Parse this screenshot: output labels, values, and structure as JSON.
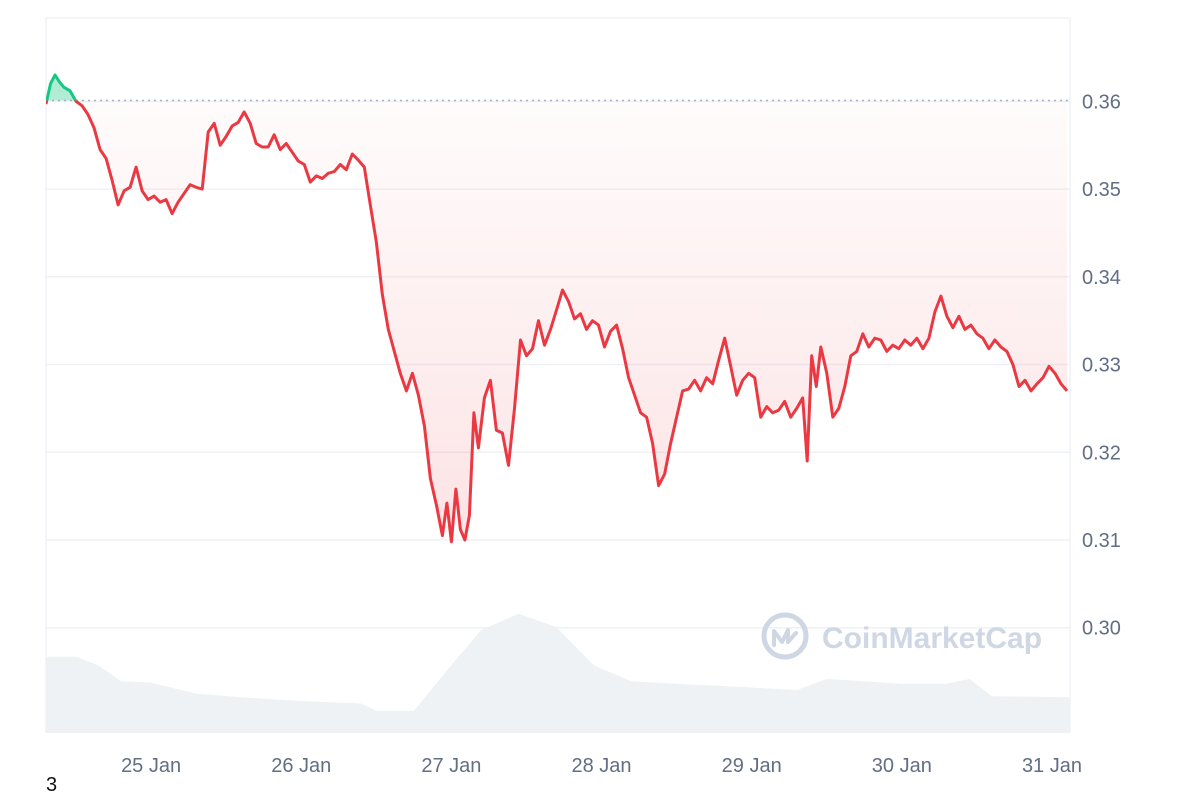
{
  "page": {
    "number": "3"
  },
  "watermark": {
    "text": "CoinMarketCap",
    "icon": "coinmarketcap-logo-icon"
  },
  "colors": {
    "down_line": "#ea3943",
    "up_line": "#16c784",
    "down_fill": "#ea3943",
    "up_fill": "#16c784",
    "grid": "#eff2f5",
    "axis_text": "#616e85",
    "baseline": "#a6b0c3",
    "volume": "#eff2f5",
    "watermark": "#cfd6e4"
  },
  "chart_data": {
    "type": "line",
    "series": [
      {
        "values": [
          [
            24.3,
            0.3597
          ],
          [
            24.33,
            0.362
          ],
          [
            24.36,
            0.363
          ],
          [
            24.39,
            0.3622
          ],
          [
            24.42,
            0.3616
          ],
          [
            24.46,
            0.3612
          ],
          [
            24.5,
            0.36
          ],
          [
            24.54,
            0.3595
          ],
          [
            24.58,
            0.3585
          ],
          [
            24.62,
            0.357
          ],
          [
            24.66,
            0.3545
          ],
          [
            24.7,
            0.3535
          ],
          [
            24.74,
            0.351
          ],
          [
            24.78,
            0.3482
          ],
          [
            24.82,
            0.3498
          ],
          [
            24.86,
            0.3502
          ],
          [
            24.9,
            0.3525
          ],
          [
            24.94,
            0.3498
          ],
          [
            24.98,
            0.3488
          ],
          [
            25.02,
            0.3492
          ],
          [
            25.06,
            0.3485
          ],
          [
            25.1,
            0.3488
          ],
          [
            25.14,
            0.3472
          ],
          [
            25.18,
            0.3485
          ],
          [
            25.22,
            0.3495
          ],
          [
            25.26,
            0.3505
          ],
          [
            25.3,
            0.3502
          ],
          [
            25.34,
            0.35
          ],
          [
            25.38,
            0.3565
          ],
          [
            25.42,
            0.3575
          ],
          [
            25.46,
            0.355
          ],
          [
            25.5,
            0.356
          ],
          [
            25.54,
            0.3572
          ],
          [
            25.58,
            0.3576
          ],
          [
            25.62,
            0.3588
          ],
          [
            25.66,
            0.3575
          ],
          [
            25.7,
            0.3552
          ],
          [
            25.74,
            0.3548
          ],
          [
            25.78,
            0.3548
          ],
          [
            25.82,
            0.3562
          ],
          [
            25.86,
            0.3545
          ],
          [
            25.9,
            0.3552
          ],
          [
            25.94,
            0.3542
          ],
          [
            25.98,
            0.3532
          ],
          [
            26.02,
            0.3528
          ],
          [
            26.06,
            0.3508
          ],
          [
            26.1,
            0.3515
          ],
          [
            26.14,
            0.3512
          ],
          [
            26.18,
            0.3518
          ],
          [
            26.22,
            0.352
          ],
          [
            26.26,
            0.3528
          ],
          [
            26.3,
            0.3522
          ],
          [
            26.34,
            0.354
          ],
          [
            26.38,
            0.3533
          ],
          [
            26.42,
            0.3525
          ],
          [
            26.46,
            0.3482
          ],
          [
            26.5,
            0.344
          ],
          [
            26.54,
            0.338
          ],
          [
            26.58,
            0.334
          ],
          [
            26.62,
            0.3315
          ],
          [
            26.66,
            0.329
          ],
          [
            26.7,
            0.327
          ],
          [
            26.74,
            0.329
          ],
          [
            26.78,
            0.3265
          ],
          [
            26.82,
            0.323
          ],
          [
            26.86,
            0.317
          ],
          [
            26.9,
            0.314
          ],
          [
            26.94,
            0.3105
          ],
          [
            26.97,
            0.3142
          ],
          [
            27.0,
            0.3098
          ],
          [
            27.03,
            0.3158
          ],
          [
            27.06,
            0.3112
          ],
          [
            27.09,
            0.31
          ],
          [
            27.12,
            0.3128
          ],
          [
            27.15,
            0.3245
          ],
          [
            27.18,
            0.3205
          ],
          [
            27.22,
            0.3262
          ],
          [
            27.26,
            0.3282
          ],
          [
            27.3,
            0.3225
          ],
          [
            27.34,
            0.3222
          ],
          [
            27.38,
            0.3185
          ],
          [
            27.42,
            0.325
          ],
          [
            27.46,
            0.3328
          ],
          [
            27.5,
            0.331
          ],
          [
            27.54,
            0.3318
          ],
          [
            27.58,
            0.335
          ],
          [
            27.62,
            0.3322
          ],
          [
            27.66,
            0.334
          ],
          [
            27.7,
            0.3362
          ],
          [
            27.74,
            0.3385
          ],
          [
            27.78,
            0.3372
          ],
          [
            27.82,
            0.3352
          ],
          [
            27.86,
            0.3358
          ],
          [
            27.9,
            0.334
          ],
          [
            27.94,
            0.335
          ],
          [
            27.98,
            0.3345
          ],
          [
            28.02,
            0.332
          ],
          [
            28.06,
            0.3338
          ],
          [
            28.1,
            0.3345
          ],
          [
            28.14,
            0.3318
          ],
          [
            28.18,
            0.3285
          ],
          [
            28.22,
            0.3265
          ],
          [
            28.26,
            0.3245
          ],
          [
            28.3,
            0.324
          ],
          [
            28.34,
            0.321
          ],
          [
            28.38,
            0.3162
          ],
          [
            28.42,
            0.3175
          ],
          [
            28.46,
            0.321
          ],
          [
            28.5,
            0.324
          ],
          [
            28.54,
            0.327
          ],
          [
            28.58,
            0.3272
          ],
          [
            28.62,
            0.3282
          ],
          [
            28.66,
            0.327
          ],
          [
            28.7,
            0.3285
          ],
          [
            28.74,
            0.3278
          ],
          [
            28.78,
            0.3305
          ],
          [
            28.82,
            0.333
          ],
          [
            28.86,
            0.3298
          ],
          [
            28.9,
            0.3265
          ],
          [
            28.94,
            0.3282
          ],
          [
            28.98,
            0.329
          ],
          [
            29.02,
            0.3285
          ],
          [
            29.06,
            0.324
          ],
          [
            29.1,
            0.3252
          ],
          [
            29.14,
            0.3245
          ],
          [
            29.18,
            0.3248
          ],
          [
            29.22,
            0.3258
          ],
          [
            29.26,
            0.324
          ],
          [
            29.3,
            0.325
          ],
          [
            29.34,
            0.3262
          ],
          [
            29.37,
            0.319
          ],
          [
            29.4,
            0.331
          ],
          [
            29.43,
            0.3275
          ],
          [
            29.46,
            0.332
          ],
          [
            29.5,
            0.329
          ],
          [
            29.54,
            0.324
          ],
          [
            29.58,
            0.325
          ],
          [
            29.62,
            0.3275
          ],
          [
            29.66,
            0.331
          ],
          [
            29.7,
            0.3315
          ],
          [
            29.74,
            0.3335
          ],
          [
            29.78,
            0.332
          ],
          [
            29.82,
            0.333
          ],
          [
            29.86,
            0.3328
          ],
          [
            29.9,
            0.3315
          ],
          [
            29.94,
            0.3322
          ],
          [
            29.98,
            0.3318
          ],
          [
            30.02,
            0.3328
          ],
          [
            30.06,
            0.3322
          ],
          [
            30.1,
            0.333
          ],
          [
            30.14,
            0.3318
          ],
          [
            30.18,
            0.333
          ],
          [
            30.22,
            0.336
          ],
          [
            30.26,
            0.3378
          ],
          [
            30.3,
            0.3355
          ],
          [
            30.34,
            0.3342
          ],
          [
            30.38,
            0.3355
          ],
          [
            30.42,
            0.334
          ],
          [
            30.46,
            0.3345
          ],
          [
            30.5,
            0.3335
          ],
          [
            30.54,
            0.333
          ],
          [
            30.58,
            0.3318
          ],
          [
            30.62,
            0.3328
          ],
          [
            30.66,
            0.332
          ],
          [
            30.7,
            0.3315
          ],
          [
            30.74,
            0.33
          ],
          [
            30.78,
            0.3275
          ],
          [
            30.82,
            0.3282
          ],
          [
            30.86,
            0.327
          ],
          [
            30.9,
            0.3278
          ],
          [
            30.94,
            0.3285
          ],
          [
            30.98,
            0.3298
          ],
          [
            31.02,
            0.329
          ],
          [
            31.06,
            0.3278
          ],
          [
            31.1,
            0.327
          ]
        ]
      }
    ],
    "baseline": 0.3601,
    "xticks": [
      {
        "value": 25,
        "label": "25 Jan"
      },
      {
        "value": 26,
        "label": "26 Jan"
      },
      {
        "value": 27,
        "label": "27 Jan"
      },
      {
        "value": 28,
        "label": "28 Jan"
      },
      {
        "value": 29,
        "label": "29 Jan"
      },
      {
        "value": 30,
        "label": "30 Jan"
      },
      {
        "value": 31,
        "label": "31 Jan"
      }
    ],
    "yticks": [
      {
        "value": 0.36,
        "label": "0.36"
      },
      {
        "value": 0.35,
        "label": "0.35"
      },
      {
        "value": 0.34,
        "label": "0.34"
      },
      {
        "value": 0.33,
        "label": "0.33"
      },
      {
        "value": 0.32,
        "label": "0.32"
      },
      {
        "value": 0.31,
        "label": "0.31"
      },
      {
        "value": 0.3,
        "label": "0.30"
      }
    ],
    "xlim": [
      24.3,
      31.12
    ],
    "ylim": [
      0.288,
      0.3695
    ],
    "volume": {
      "values": [
        [
          24.3,
          0.62
        ],
        [
          24.5,
          0.62
        ],
        [
          24.65,
          0.55
        ],
        [
          24.8,
          0.42
        ],
        [
          25.0,
          0.41
        ],
        [
          25.3,
          0.32
        ],
        [
          25.6,
          0.29
        ],
        [
          26.0,
          0.26
        ],
        [
          26.4,
          0.24
        ],
        [
          26.5,
          0.18
        ],
        [
          26.75,
          0.18
        ],
        [
          26.95,
          0.48
        ],
        [
          27.2,
          0.84
        ],
        [
          27.45,
          0.97
        ],
        [
          27.7,
          0.86
        ],
        [
          27.95,
          0.55
        ],
        [
          28.2,
          0.42
        ],
        [
          28.5,
          0.4
        ],
        [
          29.0,
          0.37
        ],
        [
          29.3,
          0.35
        ],
        [
          29.5,
          0.44
        ],
        [
          30.0,
          0.4
        ],
        [
          30.3,
          0.4
        ],
        [
          30.45,
          0.44
        ],
        [
          30.6,
          0.3
        ],
        [
          31.12,
          0.29
        ]
      ]
    },
    "grid": true,
    "legend": "none"
  }
}
